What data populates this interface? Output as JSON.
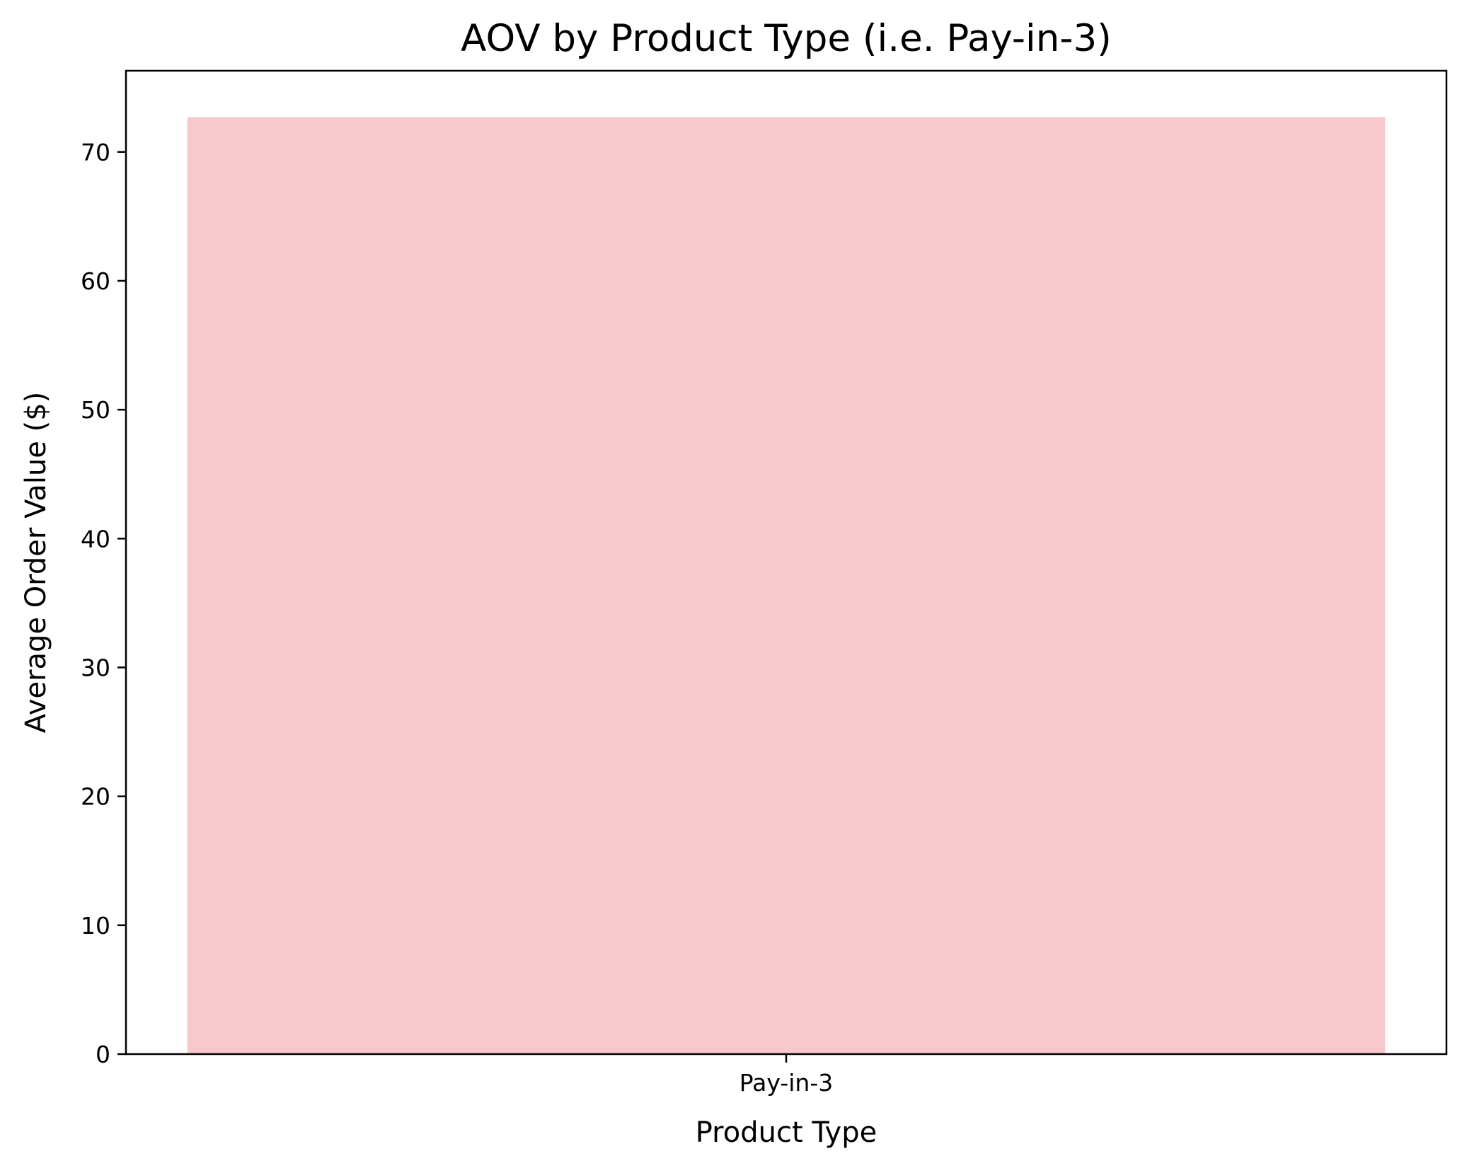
{
  "chart_data": {
    "type": "bar",
    "title": "AOV by Product Type (i.e. Pay-in-3)",
    "xlabel": "Product Type",
    "ylabel": "Average Order Value ($)",
    "categories": [
      "Pay-in-3"
    ],
    "values": [
      72.7
    ],
    "ylim": [
      0,
      76.3
    ],
    "yticks": [
      "0",
      "10",
      "20",
      "30",
      "40",
      "50",
      "60",
      "70"
    ],
    "bar_color": "#f7c8cc",
    "grid": false,
    "legend": "none"
  }
}
